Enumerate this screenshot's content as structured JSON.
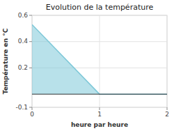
{
  "chart_data": {
    "type": "area",
    "title": "Evolution de la température",
    "x_label": "heure par heure",
    "y_label": "Température en °C",
    "x": [
      0,
      1,
      2
    ],
    "values": [
      0.53,
      0.0,
      0.0
    ],
    "color": "#7ec8d8",
    "xlim": [
      0,
      2
    ],
    "ylim": [
      -0.1,
      0.6
    ],
    "xticks": [
      0,
      1,
      2
    ],
    "yticks": [
      -0.1,
      0.2,
      0.4,
      0.6
    ],
    "grid": true
  }
}
